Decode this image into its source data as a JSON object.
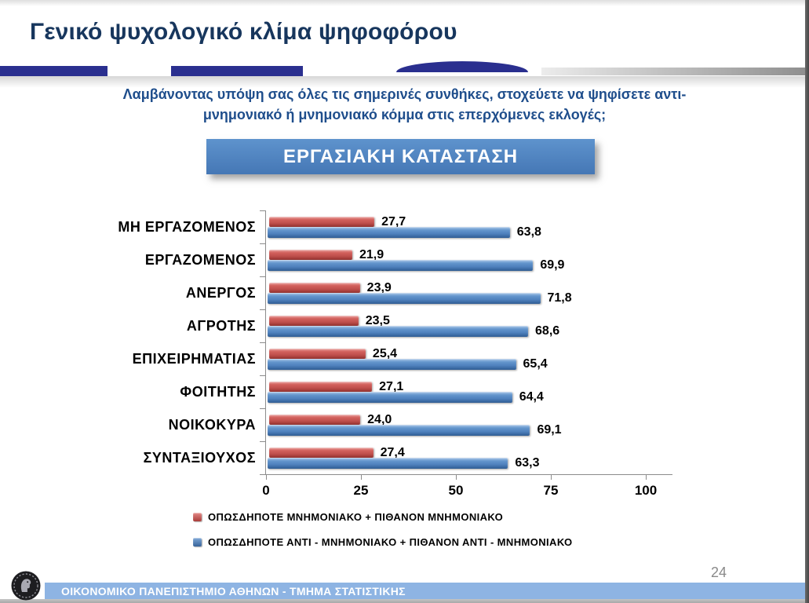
{
  "header": {
    "title": "Γενικό ψυχολογικό κλίμα ψηφοφόρου",
    "question": "Λαμβάνοντας υπόψη σας όλες τις σημερινές συνθήκες, στοχεύετε να ψηφίσετε αντι-μνημονιακό ή μνημονιακό κόμμα στις επερχόμενες εκλογές;",
    "box_label": "ΕΡΓΑΣΙΑΚΗ ΚΑΤΑΣΤΑΣΗ"
  },
  "chart_data": {
    "type": "bar",
    "orientation": "horizontal",
    "title": "ΕΡΓΑΣΙΑΚΗ ΚΑΤΑΣΤΑΣΗ",
    "categories": [
      "ΜΗ ΕΡΓΑΖΟΜΕΝΟΣ",
      "ΕΡΓΑΖΟΜΕΝΟΣ",
      "ΑΝΕΡΓΟΣ",
      "ΑΓΡΟΤΗΣ",
      "ΕΠΙΧΕΙΡΗΜΑΤΙΑΣ",
      "ΦΟΙΤΗΤΗΣ",
      "ΝΟΙΚΟΚΥΡΑ",
      "ΣΥΝΤΑΞΙΟΥΧΟΣ"
    ],
    "series": [
      {
        "name": "ΟΠΩΣΔΗΠΟΤΕ ΜΝΗΜΟΝΙΑΚΟ + ΠΙΘΑΝΟΝ ΜΝΗΜΟΝΙΑΚΟ",
        "color": "#c0504d",
        "values": [
          27.7,
          21.9,
          23.9,
          23.5,
          25.4,
          27.1,
          24.0,
          27.4
        ],
        "labels": [
          "27,7",
          "21,9",
          "23,9",
          "23,5",
          "25,4",
          "27,1",
          "24,0",
          "27,4"
        ]
      },
      {
        "name": "ΟΠΩΣΔΗΠΟΤΕ ΑΝΤΙ - ΜΝΗΜΟΝΙΑΚΟ + ΠΙΘΑΝΟΝ ΑΝΤΙ - ΜΝΗΜΟΝΙΑΚΟ",
        "color": "#4f81bd",
        "values": [
          63.8,
          69.9,
          71.8,
          68.6,
          65.4,
          64.4,
          69.1,
          63.3
        ],
        "labels": [
          "63,8",
          "69,9",
          "71,8",
          "68,6",
          "65,4",
          "64,4",
          "69,1",
          "63,3"
        ]
      }
    ],
    "x_ticks": [
      "0",
      "25",
      "50",
      "75",
      "100"
    ],
    "xlim": [
      0,
      100
    ],
    "grid": false,
    "legend_position": "bottom-left",
    "value_labels": true
  },
  "footer": {
    "page_number": "24",
    "text": "ΟΙΚΟΝΟΜΙΚΟ ΠΑΝΕΠΙΣΤΗΜΙΟ ΑΘΗΝΩΝ - ΤΜΗΜΑ ΣΤΑΤΙΣΤΙΚΗΣ",
    "logo": "university-coin-emblem"
  },
  "colors": {
    "title": "#17365d",
    "question": "#1f4e8c",
    "box_bg": "#4a7ebc",
    "band_indigo": "#2a2f8f",
    "footer_bar": "#8eb4e3",
    "axis": "#8c8c8c",
    "page_number": "#8a8a8a"
  }
}
